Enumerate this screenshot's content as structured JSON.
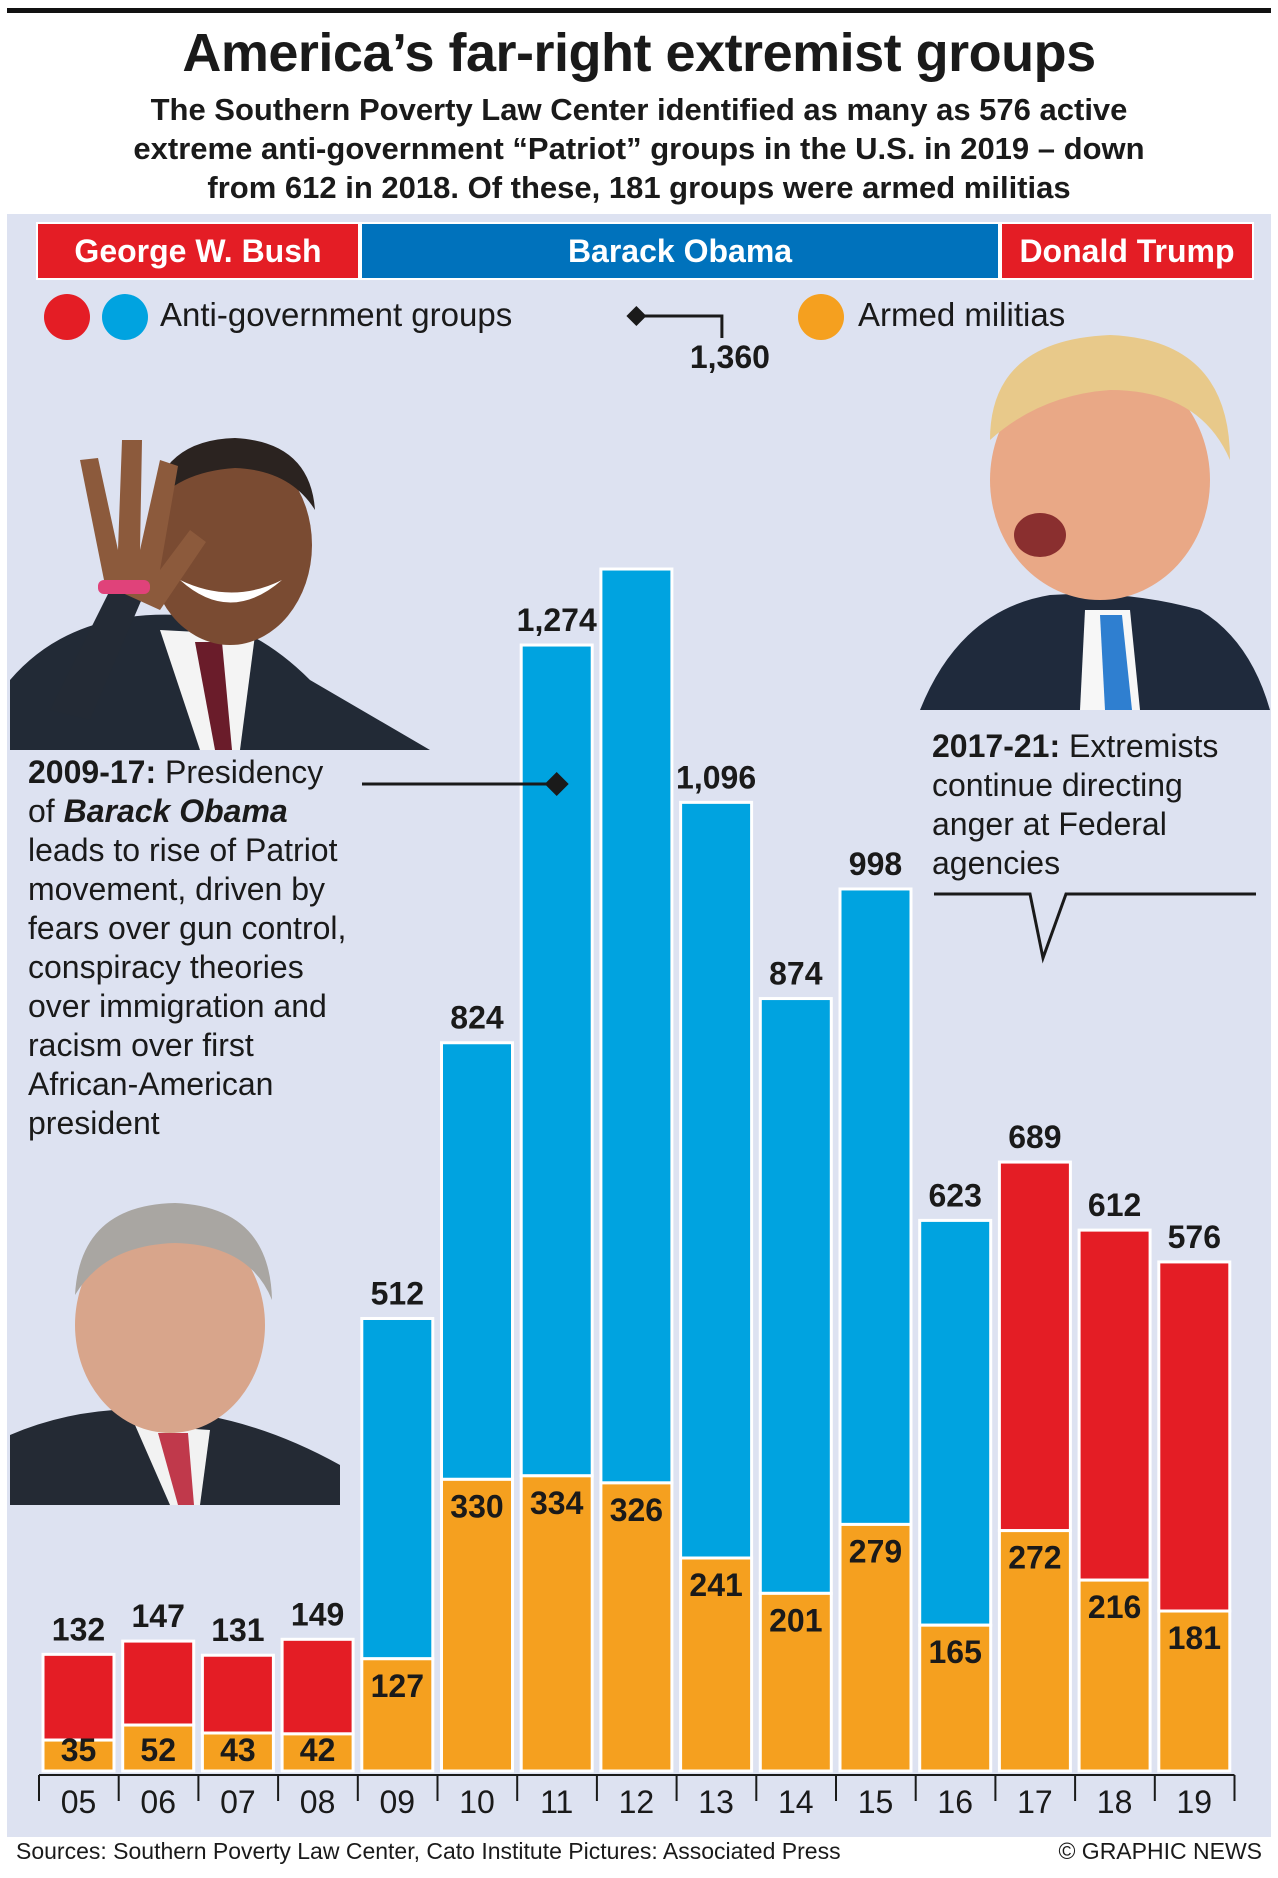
{
  "title": "America’s far-right extremist groups",
  "subtitle": [
    "The Southern Poverty Law Center identified as many as 576 active",
    "extreme anti-government “Patriot” groups in the U.S. in 2019 – down",
    "from 612 in 2018. Of these, 181 groups were armed militias"
  ],
  "eras": [
    {
      "label": "George W. Bush",
      "color": "#e41d25"
    },
    {
      "label": "Barack Obama",
      "color": "#0072bc"
    },
    {
      "label": "Donald Trump",
      "color": "#e41d25"
    }
  ],
  "legend": {
    "anti_gov": "Anti-government groups",
    "militias": "Armed militias"
  },
  "colors": {
    "bush_trump": "#e41d25",
    "obama": "#00a3e0",
    "militia": "#f5a01f",
    "era_blue": "#0072bc",
    "panel": "#dde2f1"
  },
  "annotations": {
    "obama": {
      "bold": "2009-17:",
      "text1": " Presidency",
      "of": "of ",
      "name": "Barack Obama",
      "lines": [
        "leads to rise of Patriot",
        "movement, driven by",
        "fears over gun control,",
        "conspiracy theories",
        "over immigration and",
        "racism over first",
        "African-American",
        "president"
      ]
    },
    "trump": {
      "bold": "2017-21:",
      "text1": " Extremists",
      "lines": [
        "continue directing",
        "anger at Federal",
        "agencies"
      ]
    }
  },
  "photos": {
    "obama": "Barack Obama photo",
    "trump": "Donald Trump photo",
    "bush": "George W. Bush photo"
  },
  "chart_data": {
    "type": "bar",
    "title": "America’s far-right extremist groups",
    "xlabel": "",
    "ylabel": "",
    "categories": [
      "05",
      "06",
      "07",
      "08",
      "09",
      "10",
      "11",
      "12",
      "13",
      "14",
      "15",
      "16",
      "17",
      "18",
      "19"
    ],
    "series": [
      {
        "name": "Anti-government groups",
        "values": [
          132,
          147,
          131,
          149,
          512,
          824,
          1274,
          1360,
          1096,
          874,
          998,
          623,
          689,
          612,
          576
        ]
      },
      {
        "name": "Armed militias",
        "values": [
          35,
          52,
          43,
          42,
          127,
          330,
          334,
          326,
          241,
          201,
          279,
          165,
          272,
          216,
          181
        ]
      }
    ],
    "presidency": [
      "Bush",
      "Bush",
      "Bush",
      "Bush",
      "Obama",
      "Obama",
      "Obama",
      "Obama",
      "Obama",
      "Obama",
      "Obama",
      "Obama",
      "Trump",
      "Trump",
      "Trump"
    ],
    "total_labels": [
      "132",
      "147",
      "131",
      "149",
      "512",
      "824",
      "1,274",
      "1,360",
      "1,096",
      "874",
      "998",
      "623",
      "689",
      "612",
      "576"
    ],
    "militia_labels": [
      "35",
      "52",
      "43",
      "42",
      "127",
      "330",
      "334",
      "326",
      "241",
      "201",
      "279",
      "165",
      "272",
      "216",
      "181"
    ],
    "ylim": [
      0,
      1400
    ]
  },
  "footer": {
    "sources": "Sources: Southern Poverty Law Center, Cato Institute  Pictures: Associated Press",
    "credit": "© GRAPHIC NEWS"
  }
}
